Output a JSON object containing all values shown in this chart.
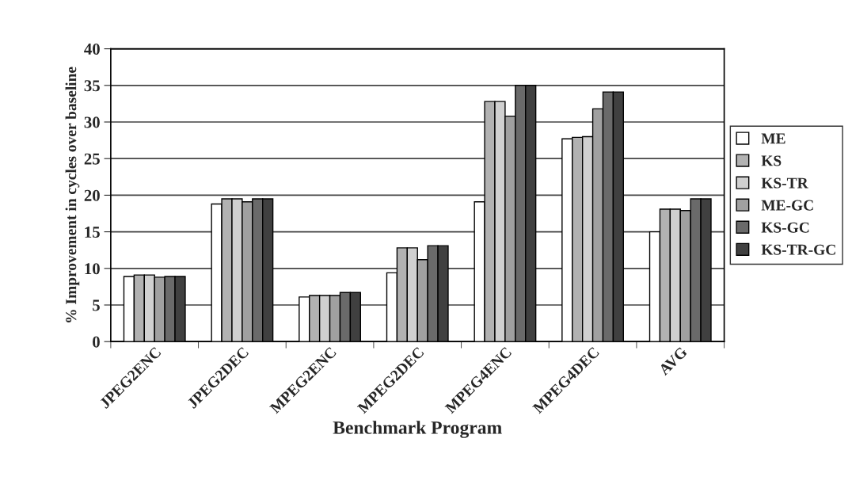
{
  "chart_data": {
    "type": "bar",
    "xlabel": "Benchmark Program",
    "ylabel": "% Improvement in cycles over baseline",
    "categories": [
      "JPEG2ENC",
      "JPEG2DEC",
      "MPEG2ENC",
      "MPEG2DEC",
      "MPEG4ENC",
      "MPEG4DEC",
      "AVG"
    ],
    "series": [
      {
        "name": "ME",
        "color": "#ffffff",
        "values": [
          8.9,
          18.8,
          6.1,
          9.4,
          19.1,
          27.7,
          15.0
        ]
      },
      {
        "name": "KS",
        "color": "#b2b2b2",
        "values": [
          9.1,
          19.5,
          6.3,
          12.8,
          32.8,
          27.9,
          18.1
        ]
      },
      {
        "name": "KS-TR",
        "color": "#d0d0d0",
        "values": [
          9.1,
          19.5,
          6.3,
          12.8,
          32.8,
          28.0,
          18.1
        ]
      },
      {
        "name": "ME-GC",
        "color": "#a0a0a0",
        "values": [
          8.8,
          19.1,
          6.3,
          11.2,
          30.8,
          31.8,
          17.9
        ]
      },
      {
        "name": "KS-GC",
        "color": "#6a6a6a",
        "values": [
          8.9,
          19.5,
          6.7,
          13.1,
          35.0,
          34.1,
          19.5
        ]
      },
      {
        "name": "KS-TR-GC",
        "color": "#404040",
        "values": [
          8.9,
          19.5,
          6.7,
          13.1,
          35.0,
          34.1,
          19.5
        ]
      }
    ],
    "ylim": [
      0,
      40
    ],
    "yticks": [
      0,
      5,
      10,
      15,
      20,
      25,
      30,
      35,
      40
    ],
    "grid": "y",
    "legend": "right"
  }
}
